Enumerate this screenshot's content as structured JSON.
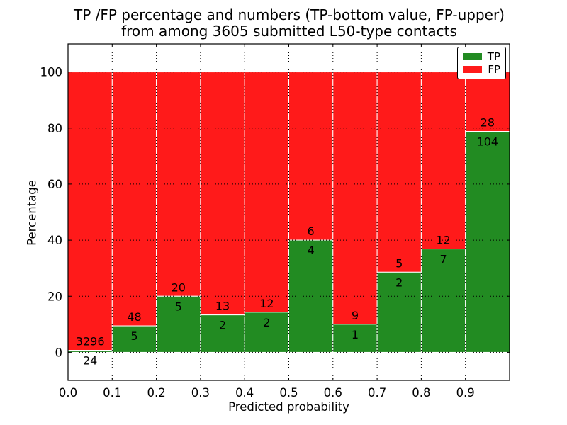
{
  "chart_data": {
    "type": "bar",
    "variant": "stacked-percentage",
    "title_line1": "TP /FP percentage and numbers (TP-bottom value, FP-upper)",
    "title_line2": "from among 3605 submitted L50-type contacts",
    "xlabel": "Predicted probability",
    "ylabel": "Percentage",
    "total_contacts": 3605,
    "bin_width": 0.1,
    "categories": [
      "0.0",
      "0.1",
      "0.2",
      "0.3",
      "0.4",
      "0.5",
      "0.6",
      "0.7",
      "0.8",
      "0.9"
    ],
    "series": [
      {
        "name": "TP",
        "color": "#228b22",
        "counts": [
          24,
          5,
          5,
          2,
          2,
          4,
          1,
          2,
          7,
          104
        ]
      },
      {
        "name": "FP",
        "color": "#ff1a1a",
        "counts": [
          3296,
          48,
          20,
          13,
          12,
          6,
          9,
          5,
          12,
          28
        ]
      }
    ],
    "tp_percent_heights": [
      0.72,
      9.43,
      20.0,
      13.33,
      14.29,
      40.0,
      10.0,
      28.57,
      36.84,
      78.79
    ],
    "xticks": [
      "0.0",
      "0.1",
      "0.2",
      "0.3",
      "0.4",
      "0.5",
      "0.6",
      "0.7",
      "0.8",
      "0.9"
    ],
    "yticks": [
      "0",
      "20",
      "40",
      "60",
      "80",
      "100"
    ],
    "xlim": [
      0.0,
      1.0
    ],
    "ylim": [
      -10,
      110
    ],
    "grid": {
      "style": "dotted",
      "color": "#000000"
    },
    "legend": {
      "position": "upper-right",
      "entries": [
        "TP",
        "FP"
      ]
    },
    "colors": {
      "tp": "#228b22",
      "fp": "#ff1a1a",
      "background": "#ffffff",
      "axis": "#000000",
      "bar_edge": "#ffffff"
    }
  }
}
